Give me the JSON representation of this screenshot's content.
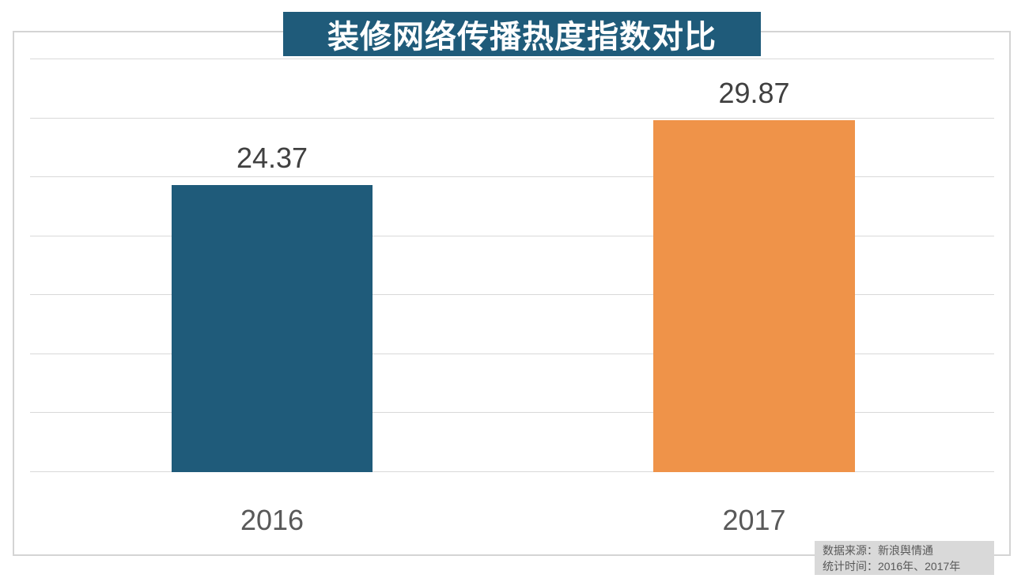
{
  "title": "装修网络传播热度指数对比",
  "source_note": {
    "line1": "数据来源：新浪舆情通",
    "line2": "统计时间：2016年、2017年"
  },
  "colors": {
    "title_background": "#1F5B7A",
    "bar_2016": "#1F5B7A",
    "bar_2017": "#EF9349",
    "gridline": "#D9D9D9",
    "frame_border": "#D4D4D4",
    "value_label_text": "#404040",
    "category_label_text": "#595959",
    "source_box_background": "#D9D9D9",
    "source_text": "#595959",
    "title_text": "#FFFFFF"
  },
  "chart_data": {
    "type": "bar",
    "title": "装修网络传播热度指数对比",
    "categories": [
      "2016",
      "2017"
    ],
    "values": [
      24.37,
      29.87
    ],
    "value_labels": [
      "24.37",
      "29.87"
    ],
    "series_colors": [
      "#1F5B7A",
      "#EF9349"
    ],
    "xlabel": "",
    "ylabel": "",
    "ylim": [
      0,
      35
    ],
    "gridline_step": 5,
    "grid": true,
    "legend": false,
    "y_axis_labels_visible": false
  }
}
